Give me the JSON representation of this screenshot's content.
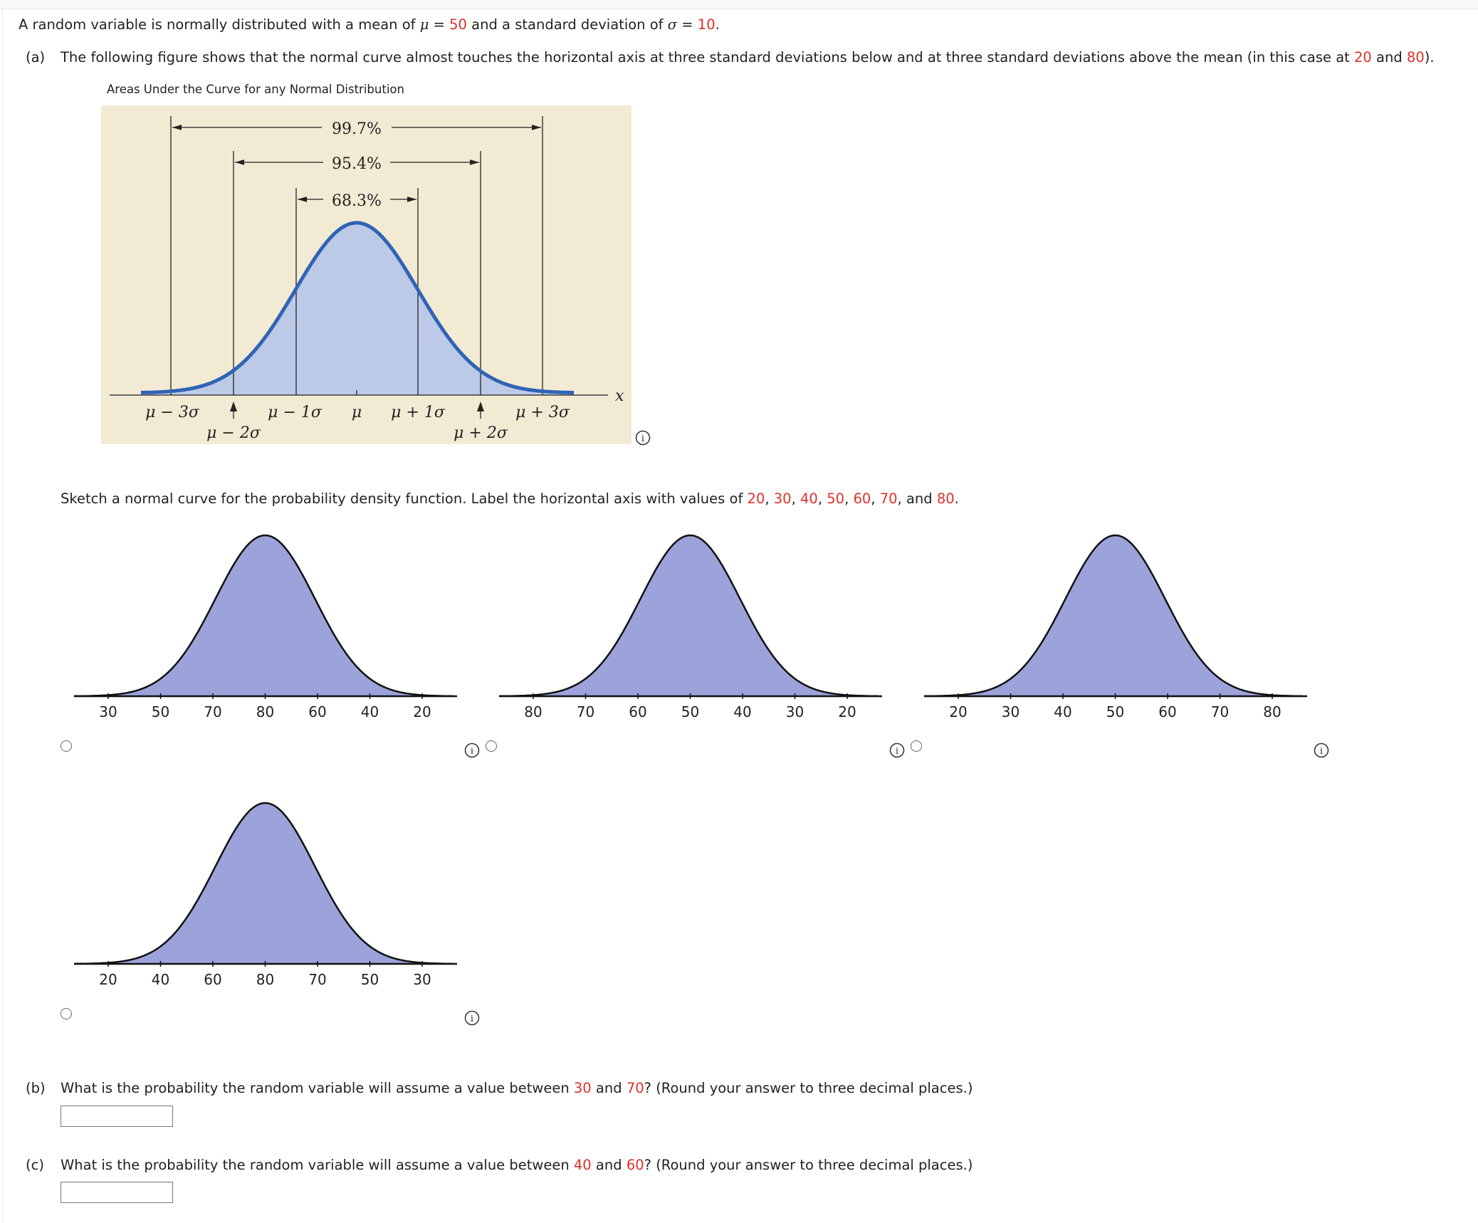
{
  "intro": {
    "pre": "A random variable is normally distributed with a mean of ",
    "mu_sym": "μ",
    "eq1": " = ",
    "mean": "50",
    "mid": " and a standard deviation of ",
    "sigma_sym": "σ",
    "eq2": " = ",
    "sd": "10",
    "end": "."
  },
  "part_a": {
    "tag": "(a)",
    "pre": "The following figure shows that the normal curve almost touches the horizontal axis at three standard deviations below and at three standard deviations above the mean (in this case at ",
    "low": "20",
    "and": " and ",
    "high": "80",
    "end": ").",
    "figure_caption": "Areas Under the Curve for any Normal Distribution",
    "figure": {
      "pct_997": "99.7%",
      "pct_954": "95.4%",
      "pct_683": "68.3%",
      "axis_var": "x",
      "labels": {
        "m3": "μ − 3σ",
        "m2": "μ − 2σ",
        "m1": "μ − 1σ",
        "mu": "μ",
        "p1": "μ + 1σ",
        "p2": "μ + 2σ",
        "p3": "μ + 3σ"
      }
    },
    "sketch_prompt": {
      "pre": "Sketch a normal curve for the probability density function. Label the horizontal axis with values of ",
      "v20": "20",
      "sep1": ", ",
      "v30": "30",
      "sep2": ", ",
      "v40": "40",
      "sep3": ", ",
      "v50": "50",
      "sep4": ", ",
      "v60": "60",
      "sep5": ", ",
      "v70": "70",
      "sep6": ", and ",
      "v80": "80",
      "end": "."
    },
    "options": [
      {
        "axis_labels": [
          "30",
          "50",
          "70",
          "80",
          "60",
          "40",
          "20"
        ],
        "peak_tick": 3
      },
      {
        "axis_labels": [
          "80",
          "70",
          "60",
          "50",
          "40",
          "30",
          "20"
        ],
        "peak_tick": 3
      },
      {
        "axis_labels": [
          "20",
          "30",
          "40",
          "50",
          "60",
          "70",
          "80"
        ],
        "peak_tick": 3
      },
      {
        "axis_labels": [
          "20",
          "40",
          "60",
          "80",
          "70",
          "50",
          "30"
        ],
        "peak_tick": 3
      }
    ]
  },
  "part_b": {
    "tag": "(b)",
    "pre": "What is the probability the random variable will assume a value between ",
    "low": "30",
    "and": " and ",
    "high": "70",
    "end": "? (Round your answer to three decimal places.)",
    "answer": ""
  },
  "part_c": {
    "tag": "(c)",
    "pre": "What is the probability the random variable will assume a value between ",
    "low": "40",
    "and": " and ",
    "high": "60",
    "end": "? (Round your answer to three decimal places.)",
    "answer": ""
  },
  "colors": {
    "highlight": "#e0302a",
    "figure_bg": "#f2ead3",
    "figure_fill": "#bccae8",
    "figure_curve": "#2f64b6",
    "option_fill": "#9ba3da"
  }
}
